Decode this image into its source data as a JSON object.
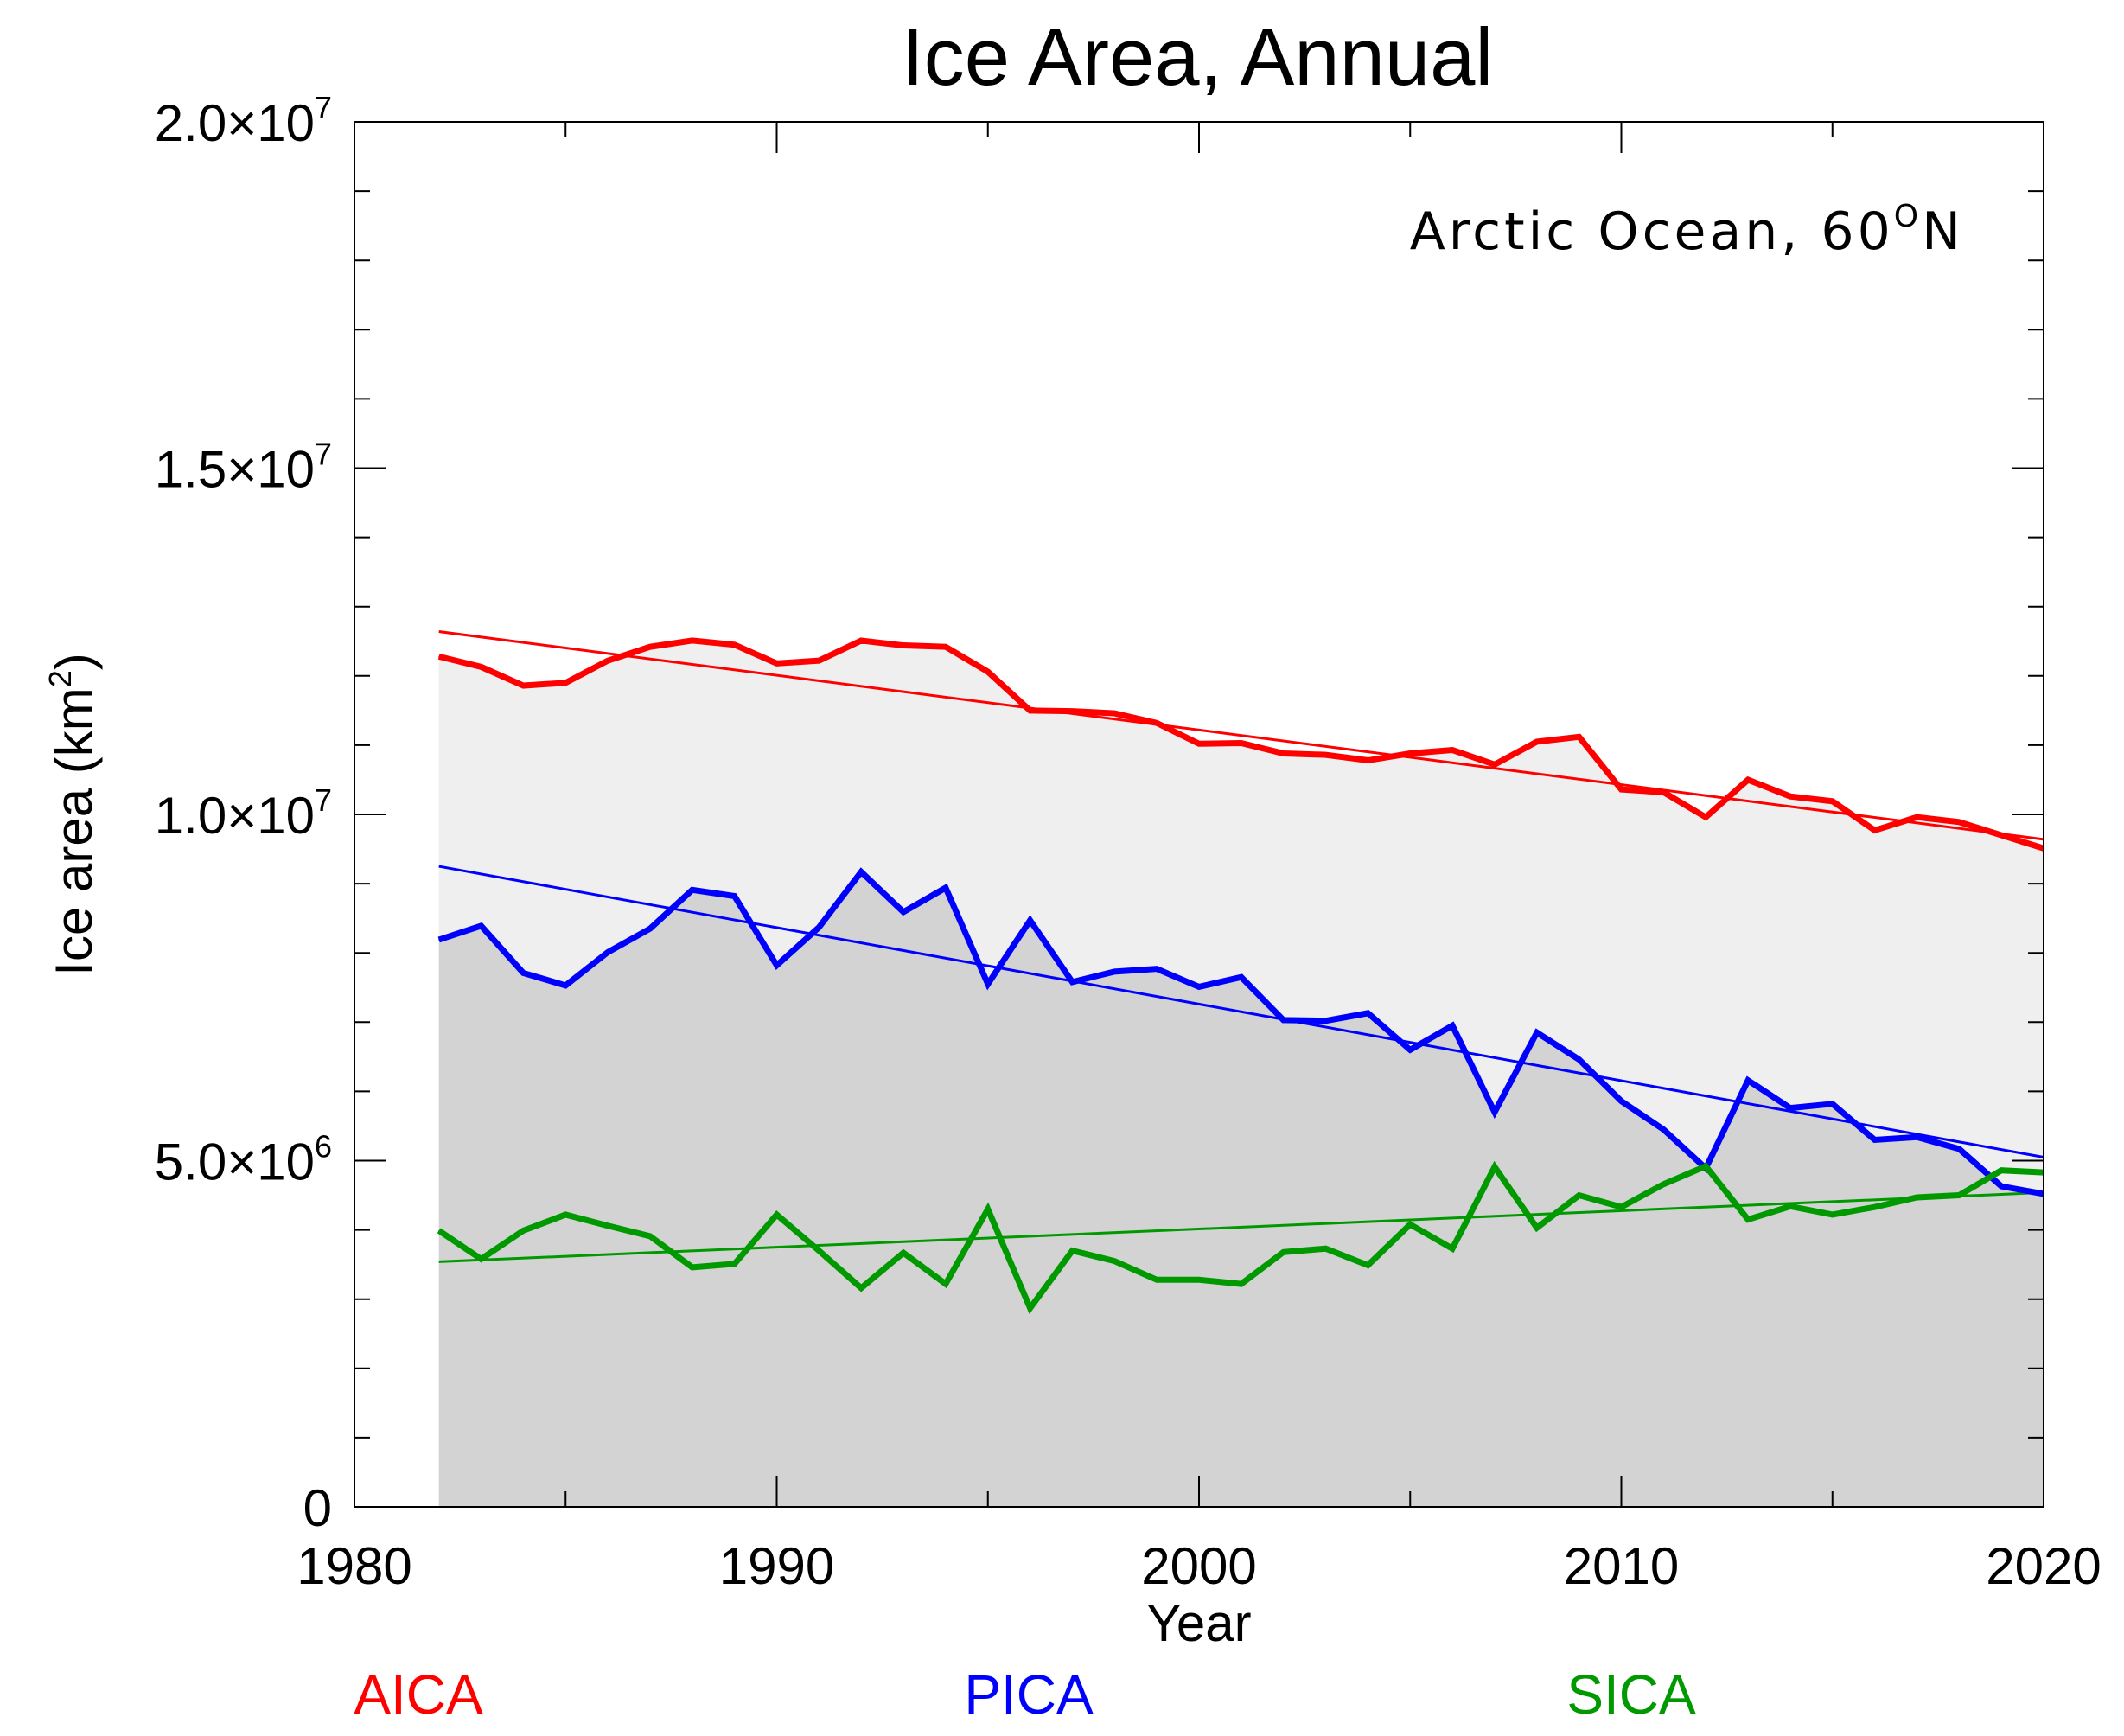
{
  "chart_data": {
    "type": "line",
    "title": "Ice Area, Annual",
    "annotation": {
      "text": "Arctic Ocean, 60",
      "sup": "O",
      "suffix": "N"
    },
    "xlabel": "Year",
    "ylabel": {
      "text": "Ice area (km",
      "sup": "2",
      "suffix": ")"
    },
    "xlim": [
      1980,
      2020
    ],
    "ylim": [
      0,
      20000000
    ],
    "xticks": [
      {
        "value": 1980,
        "label": "1980"
      },
      {
        "value": 1990,
        "label": "1990"
      },
      {
        "value": 2000,
        "label": "2000"
      },
      {
        "value": 2010,
        "label": "2010"
      },
      {
        "value": 2020,
        "label": "2020"
      }
    ],
    "yticks": [
      {
        "value": 0,
        "mantissa": "0",
        "exponent": ""
      },
      {
        "value": 5000000,
        "mantissa": "5.0×10",
        "exponent": "6"
      },
      {
        "value": 10000000,
        "mantissa": "1.0×10",
        "exponent": "7"
      },
      {
        "value": 15000000,
        "mantissa": "1.5×10",
        "exponent": "7"
      },
      {
        "value": 20000000,
        "mantissa": "2.0×10",
        "exponent": "7"
      }
    ],
    "x": [
      1982,
      1983,
      1984,
      1985,
      1986,
      1987,
      1988,
      1989,
      1990,
      1991,
      1992,
      1993,
      1994,
      1995,
      1996,
      1997,
      1998,
      1999,
      2000,
      2001,
      2002,
      2003,
      2004,
      2005,
      2006,
      2007,
      2008,
      2009,
      2010,
      2011,
      2012,
      2013,
      2014,
      2015,
      2016,
      2017,
      2018,
      2019,
      2020
    ],
    "series": [
      {
        "name": "AICA",
        "color": "#ff0000",
        "values": [
          12280000,
          12130000,
          11860000,
          11900000,
          12220000,
          12420000,
          12510000,
          12450000,
          12180000,
          12220000,
          12510000,
          12440000,
          12420000,
          12060000,
          11500000,
          11490000,
          11460000,
          11320000,
          11020000,
          11030000,
          10880000,
          10860000,
          10780000,
          10880000,
          10930000,
          10720000,
          11050000,
          11120000,
          10360000,
          10320000,
          9960000,
          10500000,
          10260000,
          10190000,
          9770000,
          9960000,
          9890000,
          9700000,
          9510000
        ],
        "trend": [
          12640000,
          9640000
        ],
        "fill_color": "#efefef"
      },
      {
        "name": "PICA",
        "color": "#0000ff",
        "values": [
          8190000,
          8390000,
          7710000,
          7530000,
          8010000,
          8350000,
          8910000,
          8820000,
          7820000,
          8370000,
          9170000,
          8590000,
          8940000,
          7550000,
          8470000,
          7580000,
          7730000,
          7770000,
          7510000,
          7650000,
          7030000,
          7020000,
          7130000,
          6600000,
          6950000,
          5700000,
          6850000,
          6460000,
          5860000,
          5450000,
          4890000,
          6160000,
          5760000,
          5820000,
          5300000,
          5340000,
          5170000,
          4630000,
          4520000
        ],
        "trend": [
          9250000,
          5050000
        ],
        "fill_color": "#d3d3d3"
      },
      {
        "name": "SICA",
        "color": "#009900",
        "values": [
          3990000,
          3580000,
          3990000,
          4220000,
          4060000,
          3910000,
          3460000,
          3510000,
          4220000,
          3700000,
          3160000,
          3670000,
          3220000,
          4300000,
          2870000,
          3700000,
          3550000,
          3280000,
          3280000,
          3220000,
          3680000,
          3730000,
          3490000,
          4080000,
          3730000,
          4910000,
          4030000,
          4500000,
          4330000,
          4660000,
          4920000,
          4150000,
          4340000,
          4220000,
          4330000,
          4470000,
          4500000,
          4860000,
          4830000
        ],
        "trend": [
          3540000,
          4540000
        ]
      }
    ],
    "legend": [
      {
        "label": "AICA",
        "color": "#ff0000"
      },
      {
        "label": "PICA",
        "color": "#0000ff"
      },
      {
        "label": "SICA",
        "color": "#009900"
      }
    ],
    "legend_location": "bottom"
  }
}
